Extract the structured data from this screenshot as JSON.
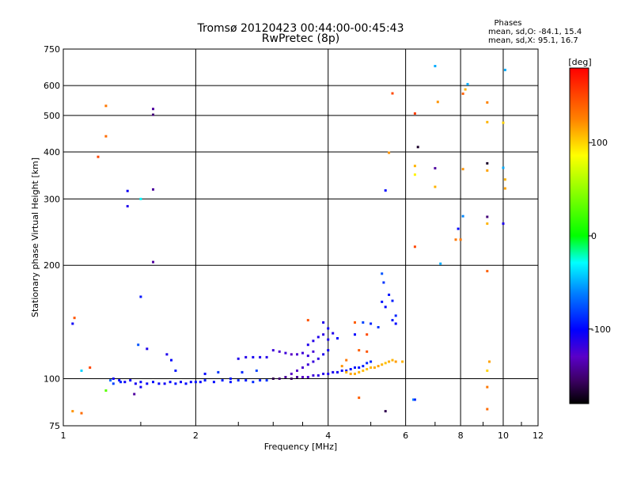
{
  "chart_data": {
    "type": "scatter",
    "title": "Tromsø 20120423 00:44:00-00:45:43",
    "subtitle": "RwPretec (8p)",
    "phases": {
      "label": "Phases",
      "line_o": "mean, sd,O:  -84.1, 15.4",
      "line_x": "mean, sd,X:  95.1, 16.7"
    },
    "xlabel": "Frequency [MHz]",
    "ylabel": "Stationary phase Virtual Height [km]",
    "x_scale": "log",
    "y_scale": "log",
    "xlim": [
      1,
      12
    ],
    "ylim": [
      75,
      750
    ],
    "x_ticks": [
      1,
      2,
      4,
      6,
      8,
      10,
      12
    ],
    "x_tick_labels": [
      "1",
      "2",
      "4",
      "6",
      "8",
      "10",
      "12"
    ],
    "y_ticks": [
      75,
      100,
      200,
      300,
      400,
      500,
      600,
      750
    ],
    "y_tick_labels": [
      "75",
      "100",
      "200",
      "300",
      "400",
      "500",
      "600",
      "750"
    ],
    "grid": true,
    "colorbar": {
      "label": "[deg]",
      "range": [
        -180,
        180
      ],
      "ticks": [
        100,
        0,
        -100
      ],
      "tick_labels": [
        "100",
        "0",
        "-100"
      ]
    },
    "points": [
      [
        1.05,
        140,
        -105
      ],
      [
        1.06,
        145,
        145
      ],
      [
        1.1,
        105,
        -40
      ],
      [
        1.15,
        107,
        150
      ],
      [
        1.2,
        388,
        150
      ],
      [
        1.25,
        530,
        130
      ],
      [
        1.25,
        440,
        135
      ],
      [
        1.05,
        82,
        120
      ],
      [
        1.1,
        81,
        135
      ],
      [
        1.4,
        315,
        -105
      ],
      [
        1.4,
        287,
        -110
      ],
      [
        1.5,
        300,
        -30
      ],
      [
        1.6,
        520,
        -140
      ],
      [
        1.6,
        502,
        -150
      ],
      [
        1.6,
        318,
        -140
      ],
      [
        1.6,
        204,
        -140
      ],
      [
        1.5,
        165,
        -95
      ],
      [
        1.48,
        123,
        -75
      ],
      [
        1.55,
        120,
        -110
      ],
      [
        1.25,
        93,
        30
      ],
      [
        1.28,
        99,
        -70
      ],
      [
        1.3,
        97,
        -80
      ],
      [
        1.35,
        98,
        -90
      ],
      [
        1.45,
        91,
        -140
      ],
      [
        1.5,
        95,
        -105
      ],
      [
        1.3,
        100,
        -105
      ],
      [
        1.34,
        99,
        -100
      ],
      [
        1.38,
        98,
        -104
      ],
      [
        1.42,
        99,
        -102
      ],
      [
        1.46,
        97,
        -108
      ],
      [
        1.5,
        98,
        -100
      ],
      [
        1.55,
        97,
        -104
      ],
      [
        1.6,
        98,
        -98
      ],
      [
        1.65,
        97,
        -102
      ],
      [
        1.7,
        97,
        -106
      ],
      [
        1.75,
        98,
        -100
      ],
      [
        1.8,
        97,
        -97
      ],
      [
        1.85,
        98,
        -103
      ],
      [
        1.9,
        97,
        -99
      ],
      [
        1.95,
        98,
        -101
      ],
      [
        2.0,
        98,
        -95
      ],
      [
        2.05,
        98,
        -100
      ],
      [
        2.1,
        99,
        -94
      ],
      [
        2.2,
        98,
        -98
      ],
      [
        2.3,
        99,
        -92
      ],
      [
        2.4,
        98,
        -96
      ],
      [
        2.5,
        99,
        -90
      ],
      [
        2.6,
        99,
        -93
      ],
      [
        2.7,
        98,
        -88
      ],
      [
        2.8,
        99,
        -90
      ],
      [
        2.9,
        99,
        -85
      ],
      [
        1.72,
        116,
        -110
      ],
      [
        1.76,
        112,
        -100
      ],
      [
        1.8,
        105,
        -95
      ],
      [
        2.1,
        103,
        -100
      ],
      [
        2.25,
        104,
        -85
      ],
      [
        2.4,
        100,
        -95
      ],
      [
        2.55,
        104,
        -90
      ],
      [
        2.75,
        105,
        -80
      ],
      [
        2.5,
        113,
        -110
      ],
      [
        2.6,
        114,
        -112
      ],
      [
        2.7,
        114,
        -108
      ],
      [
        2.8,
        114,
        -110
      ],
      [
        2.9,
        114,
        -112
      ],
      [
        3.0,
        119,
        -120
      ],
      [
        3.1,
        118,
        -125
      ],
      [
        3.2,
        117,
        -120
      ],
      [
        3.3,
        116,
        -130
      ],
      [
        3.4,
        116,
        -125
      ],
      [
        3.5,
        117,
        -120
      ],
      [
        3.6,
        115,
        -118
      ],
      [
        3.7,
        118,
        -122
      ],
      [
        3.0,
        100,
        -160
      ],
      [
        3.1,
        100,
        -150
      ],
      [
        3.2,
        101,
        -140
      ],
      [
        3.3,
        100,
        -155
      ],
      [
        3.4,
        101,
        -140
      ],
      [
        3.5,
        101,
        -130
      ],
      [
        3.6,
        101,
        -125
      ],
      [
        3.7,
        102,
        -120
      ],
      [
        3.8,
        102,
        -115
      ],
      [
        3.9,
        103,
        -112
      ],
      [
        4.0,
        103,
        -110
      ],
      [
        4.1,
        104,
        -108
      ],
      [
        4.2,
        104,
        -105
      ],
      [
        4.3,
        105,
        -102
      ],
      [
        4.4,
        105,
        -100
      ],
      [
        4.5,
        106,
        -98
      ],
      [
        4.6,
        107,
        -95
      ],
      [
        4.7,
        107,
        -95
      ],
      [
        4.8,
        108,
        -92
      ],
      [
        4.9,
        110,
        -90
      ],
      [
        5.0,
        111,
        -88
      ],
      [
        3.3,
        103,
        -130
      ],
      [
        3.4,
        105,
        -128
      ],
      [
        3.5,
        107,
        -125
      ],
      [
        3.6,
        109,
        -120
      ],
      [
        3.7,
        111,
        -118
      ],
      [
        3.8,
        113,
        -115
      ],
      [
        3.9,
        116,
        -110
      ],
      [
        4.0,
        119,
        -105
      ],
      [
        3.6,
        123,
        -110
      ],
      [
        3.7,
        126,
        -112
      ],
      [
        3.8,
        129,
        -110
      ],
      [
        3.9,
        131,
        -115
      ],
      [
        4.0,
        127,
        -108
      ],
      [
        3.9,
        141,
        -110
      ],
      [
        4.0,
        136,
        -105
      ],
      [
        4.1,
        132,
        -110
      ],
      [
        4.2,
        128,
        -100
      ],
      [
        4.6,
        131,
        -100
      ],
      [
        4.8,
        141,
        -80
      ],
      [
        5.0,
        140,
        -90
      ],
      [
        5.2,
        137,
        -85
      ],
      [
        5.3,
        160,
        -95
      ],
      [
        5.4,
        155,
        -100
      ],
      [
        5.5,
        167,
        -95
      ],
      [
        5.6,
        161,
        -92
      ],
      [
        5.6,
        143,
        -95
      ],
      [
        5.7,
        140,
        -100
      ],
      [
        5.7,
        147,
        -90
      ],
      [
        5.3,
        190,
        -75
      ],
      [
        5.35,
        180,
        -85
      ],
      [
        4.4,
        104,
        110
      ],
      [
        4.5,
        103,
        115
      ],
      [
        4.6,
        103,
        112
      ],
      [
        4.7,
        104,
        110
      ],
      [
        4.8,
        105,
        108
      ],
      [
        4.9,
        106,
        105
      ],
      [
        5.0,
        107,
        110
      ],
      [
        5.1,
        107,
        112
      ],
      [
        5.2,
        108,
        115
      ],
      [
        5.3,
        109,
        110
      ],
      [
        5.4,
        110,
        105
      ],
      [
        5.5,
        111,
        112
      ],
      [
        5.6,
        112,
        110
      ],
      [
        5.7,
        111,
        118
      ],
      [
        5.9,
        111,
        110
      ],
      [
        4.3,
        108,
        120
      ],
      [
        4.4,
        112,
        130
      ],
      [
        4.7,
        119,
        140
      ],
      [
        4.9,
        118,
        145
      ],
      [
        4.9,
        131,
        150
      ],
      [
        4.6,
        141,
        140
      ],
      [
        3.6,
        143,
        145
      ],
      [
        4.7,
        89,
        140
      ],
      [
        5.4,
        82,
        -160
      ],
      [
        5.5,
        398,
        120
      ],
      [
        5.4,
        316,
        -100
      ],
      [
        5.6,
        572,
        150
      ],
      [
        6.3,
        506,
        155
      ],
      [
        6.3,
        367,
        110
      ],
      [
        6.3,
        348,
        90
      ],
      [
        6.3,
        224,
        150
      ],
      [
        6.4,
        412,
        -170
      ],
      [
        6.25,
        88,
        -60
      ],
      [
        6.3,
        88,
        -90
      ],
      [
        7.0,
        676,
        -50
      ],
      [
        7.1,
        543,
        120
      ],
      [
        7.0,
        362,
        -140
      ],
      [
        7.0,
        323,
        110
      ],
      [
        7.2,
        202,
        -50
      ],
      [
        7.8,
        234,
        130
      ],
      [
        7.9,
        250,
        -100
      ],
      [
        8.0,
        234,
        130
      ],
      [
        8.1,
        571,
        140
      ],
      [
        8.2,
        586,
        110
      ],
      [
        8.3,
        605,
        -50
      ],
      [
        8.1,
        360,
        120
      ],
      [
        8.1,
        270,
        -60
      ],
      [
        9.2,
        541,
        125
      ],
      [
        9.2,
        480,
        110
      ],
      [
        9.2,
        373,
        -170
      ],
      [
        9.2,
        357,
        115
      ],
      [
        9.2,
        269,
        -150
      ],
      [
        9.2,
        258,
        110
      ],
      [
        9.2,
        193,
        140
      ],
      [
        9.2,
        105,
        100
      ],
      [
        9.3,
        111,
        115
      ],
      [
        9.2,
        95,
        130
      ],
      [
        9.2,
        83,
        135
      ],
      [
        10.0,
        363,
        -50
      ],
      [
        10.1,
        338,
        110
      ],
      [
        10.1,
        320,
        115
      ],
      [
        10.0,
        478,
        100
      ],
      [
        10.0,
        258,
        -110
      ],
      [
        10.1,
        660,
        -50
      ]
    ]
  }
}
